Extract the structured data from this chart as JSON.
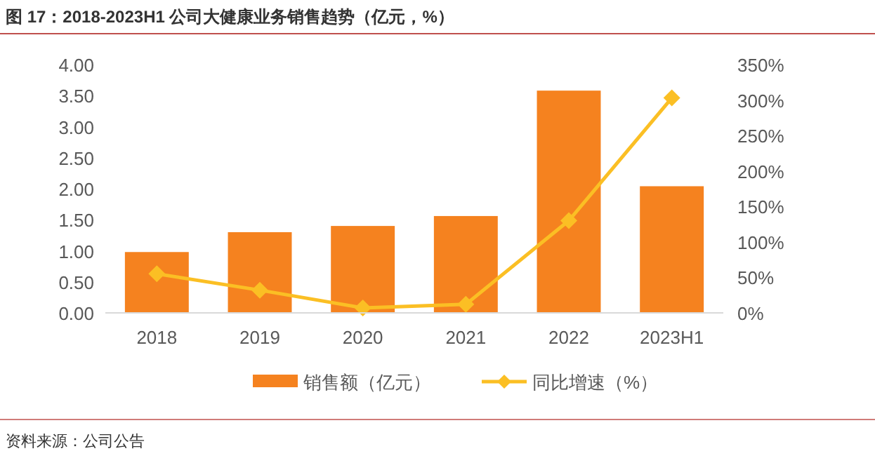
{
  "chart_data": {
    "type": "bar",
    "title": "图 17：2018-2023H1 公司大健康业务销售趋势（亿元，%）",
    "categories": [
      "2018",
      "2019",
      "2020",
      "2021",
      "2022",
      "2023H1"
    ],
    "series": [
      {
        "name": "销售额（亿元）",
        "color": "#f5821f",
        "values": [
          0.98,
          1.3,
          1.4,
          1.56,
          3.58,
          2.04
        ]
      },
      {
        "name": "同比增速（%）",
        "type": "line",
        "axis": "y2",
        "color": "#fbbf24",
        "marker": "diamond",
        "values": [
          55,
          32,
          7,
          12,
          130,
          303
        ]
      }
    ],
    "ylim": [
      0,
      4
    ],
    "yticks": [
      {
        "value": 0,
        "label": "0.00"
      },
      {
        "value": 0.5,
        "label": "0.50"
      },
      {
        "value": 1,
        "label": "1.00"
      },
      {
        "value": 1.5,
        "label": "1.50"
      },
      {
        "value": 2,
        "label": "2.00"
      },
      {
        "value": 2.5,
        "label": "2.50"
      },
      {
        "value": 3,
        "label": "3.00"
      },
      {
        "value": 3.5,
        "label": "3.50"
      },
      {
        "value": 4,
        "label": "4.00"
      }
    ],
    "y2lim": [
      0,
      350
    ],
    "y2ticks": [
      {
        "value": 0,
        "label": "0%"
      },
      {
        "value": 50,
        "label": "50%"
      },
      {
        "value": 100,
        "label": "100%"
      },
      {
        "value": 150,
        "label": "150%"
      },
      {
        "value": 200,
        "label": "200%"
      },
      {
        "value": 250,
        "label": "250%"
      },
      {
        "value": 300,
        "label": "300%"
      },
      {
        "value": 350,
        "label": "350%"
      }
    ],
    "grid": false,
    "legend": "bottom",
    "annotations": [
      "资料来源：公司公告"
    ]
  }
}
